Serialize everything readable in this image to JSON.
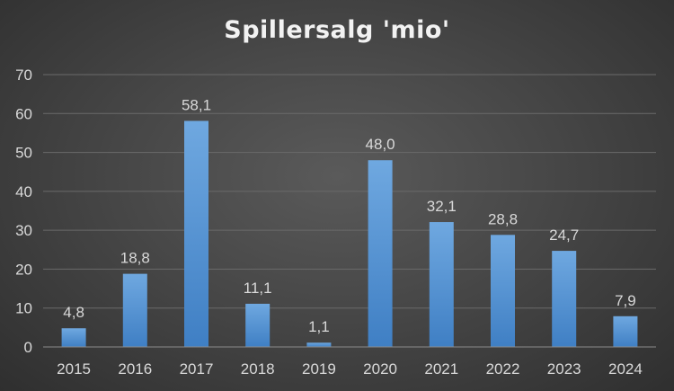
{
  "chart_data": {
    "type": "bar",
    "title": "Spillersalg 'mio'",
    "categories": [
      "2015",
      "2016",
      "2017",
      "2018",
      "2019",
      "2020",
      "2021",
      "2022",
      "2023",
      "2024"
    ],
    "values": [
      4.8,
      18.8,
      58.1,
      11.1,
      1.1,
      48.0,
      32.1,
      28.8,
      24.7,
      7.9
    ],
    "data_labels": [
      "4,8",
      "18,8",
      "58,1",
      "11,1",
      "1,1",
      "48,0",
      "32,1",
      "28,8",
      "24,7",
      "7,9"
    ],
    "yticks": [
      "0",
      "10",
      "20",
      "30",
      "40",
      "50",
      "60",
      "70"
    ],
    "ylim": [
      0,
      70
    ],
    "grid": true,
    "legend": "none",
    "colors": {
      "bar_top": "#6fa8e0",
      "bar_bottom": "#3f7fc4",
      "grid": "#6a6a6a",
      "axis_text": "#d9d9d9"
    }
  }
}
